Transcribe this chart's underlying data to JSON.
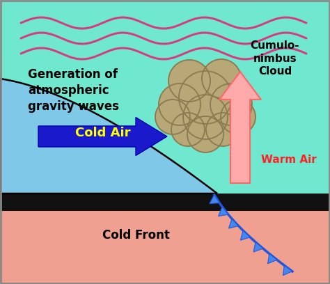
{
  "bg_color": "#ffffff",
  "teal_color": "#70e8d0",
  "cold_air_blue": "#80c8e8",
  "ground_pink": "#f0a090",
  "ground_dark_strip_color": "#111111",
  "wave_color": "#d04080",
  "cloud_color": "#b8a878",
  "cloud_edge_color": "#8b7a50",
  "cold_arrow_color": "#1a1acc",
  "warm_arrow_fill": "#ffaaaa",
  "warm_arrow_edge": "#ff6666",
  "cold_front_line_color": "#2255dd",
  "cold_front_tri_fill": "#4488ee",
  "cold_front_tri_edge": "#2255dd",
  "text_gen": "Generation of\natmospheric\ngravity waves",
  "text_cumulo": "Cumulo-\nnimbus\nCloud",
  "text_cold_air": "Cold Air",
  "text_warm_air": "Warm Air",
  "text_cold_front": "Cold Front",
  "figsize": [
    4.74,
    4.08
  ],
  "dpi": 100
}
